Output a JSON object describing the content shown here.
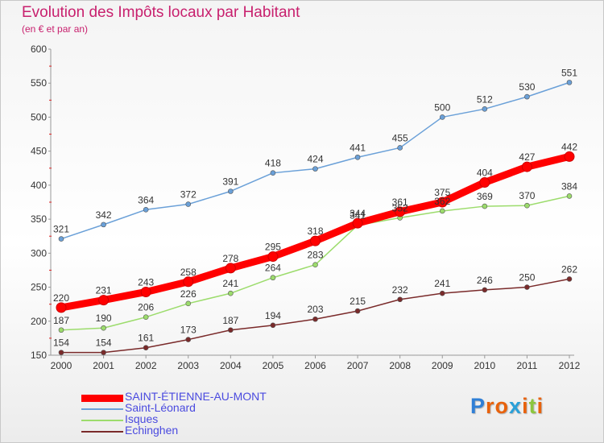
{
  "title": "Evolution des Impôts locaux par Habitant",
  "subtitle": "(en € et par an)",
  "logo": {
    "letters": [
      "P",
      "r",
      "o",
      "x",
      "i",
      "t",
      "i"
    ],
    "colors": [
      "#2f7fd6",
      "#e8620c",
      "#e8620c",
      "#2aa0d8",
      "#e8620c",
      "#8cc63e",
      "#e8620c"
    ]
  },
  "chart_data": {
    "type": "line",
    "x": [
      "2000",
      "2001",
      "2002",
      "2003",
      "2004",
      "2005",
      "2006",
      "2007",
      "2008",
      "2009",
      "2010",
      "2011",
      "2012"
    ],
    "ylim": [
      150,
      600
    ],
    "yticks": [
      150,
      200,
      250,
      300,
      350,
      400,
      450,
      500,
      550,
      600
    ],
    "grid": false,
    "legend_position": "bottom-left",
    "series": [
      {
        "name": "SAINT-ÉTIENNE-AU-MONT",
        "color": "#ff0000",
        "width": 9,
        "values": [
          220,
          231,
          243,
          258,
          278,
          295,
          318,
          344,
          361,
          375,
          404,
          427,
          442
        ]
      },
      {
        "name": "Saint-Léonard",
        "color": "#6aa0d8",
        "width": 1.5,
        "values": [
          321,
          342,
          364,
          372,
          391,
          418,
          424,
          441,
          455,
          500,
          512,
          530,
          551
        ]
      },
      {
        "name": "Isques",
        "color": "#9cdc6c",
        "width": 1.5,
        "values": [
          187,
          190,
          206,
          226,
          241,
          264,
          283,
          341,
          352,
          362,
          369,
          370,
          384
        ]
      },
      {
        "name": "Echinghen",
        "color": "#7a2a2a",
        "width": 1.5,
        "values": [
          154,
          154,
          161,
          173,
          187,
          194,
          203,
          215,
          232,
          241,
          246,
          250,
          262
        ]
      }
    ]
  }
}
